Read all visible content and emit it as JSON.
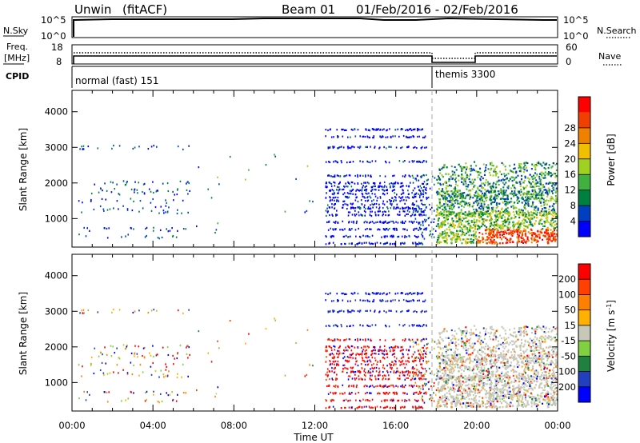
{
  "header": {
    "radar": "Unwin",
    "mode": "(fitACF)",
    "beam": "Beam 01",
    "dates": "01/Feb/2016 - 02/Feb/2016"
  },
  "panels": {
    "nsky": {
      "label": "N.Sky",
      "tick_top": "10^5",
      "tick_bot": "10^0",
      "right_label": "N.Search"
    },
    "freq": {
      "label_line1": "Freq.",
      "label_line2": "[MHz]",
      "tick_top": "18",
      "tick_bot": "8",
      "right_tick_top": "60",
      "right_tick_bot": "0",
      "right_label": "Nave"
    },
    "cpid": {
      "label": "CPID",
      "mode1": "normal (fast) 151",
      "mode2": "themis 3300"
    }
  },
  "colors": {
    "power": [
      "#0000ff",
      "#0040c0",
      "#008040",
      "#40b040",
      "#a0d020",
      "#f0c000",
      "#f08000",
      "#f04000",
      "#ff0000"
    ],
    "velocity": [
      "#ff0000",
      "#ff4000",
      "#ff8000",
      "#ffb000",
      "#c8c8b8",
      "#80d040",
      "#208040",
      "#2040c0",
      "#0000ff"
    ]
  },
  "chart_data": [
    {
      "type": "heatmap",
      "name": "power",
      "ylabel": "Slant Range [km]",
      "ylim": [
        200,
        4600
      ],
      "yticks": [
        1000,
        2000,
        3000,
        4000
      ],
      "xticks": [
        "00:00",
        "04:00",
        "08:00",
        "12:00",
        "16:00",
        "20:00",
        "00:00"
      ],
      "xlim_hours": [
        0,
        24
      ],
      "colorbar": {
        "label": "Power [dB]",
        "ticks": [
          "4",
          "8",
          "12",
          "16",
          "20",
          "24",
          "28"
        ],
        "range": [
          0,
          30
        ]
      }
    },
    {
      "type": "heatmap",
      "name": "velocity",
      "ylabel": "Slant Range [km]",
      "ylim": [
        200,
        4600
      ],
      "yticks": [
        1000,
        2000,
        3000,
        4000
      ],
      "xlabel": "Time UT",
      "xticks": [
        "00:00",
        "04:00",
        "08:00",
        "12:00",
        "16:00",
        "20:00",
        "00:00"
      ],
      "xlim_hours": [
        0,
        24
      ],
      "colorbar": {
        "label": "Velocity [m s^-1]",
        "ticks": [
          "200",
          "100",
          "50",
          "15",
          "-15",
          "-50",
          "-100",
          "-200"
        ]
      }
    }
  ]
}
